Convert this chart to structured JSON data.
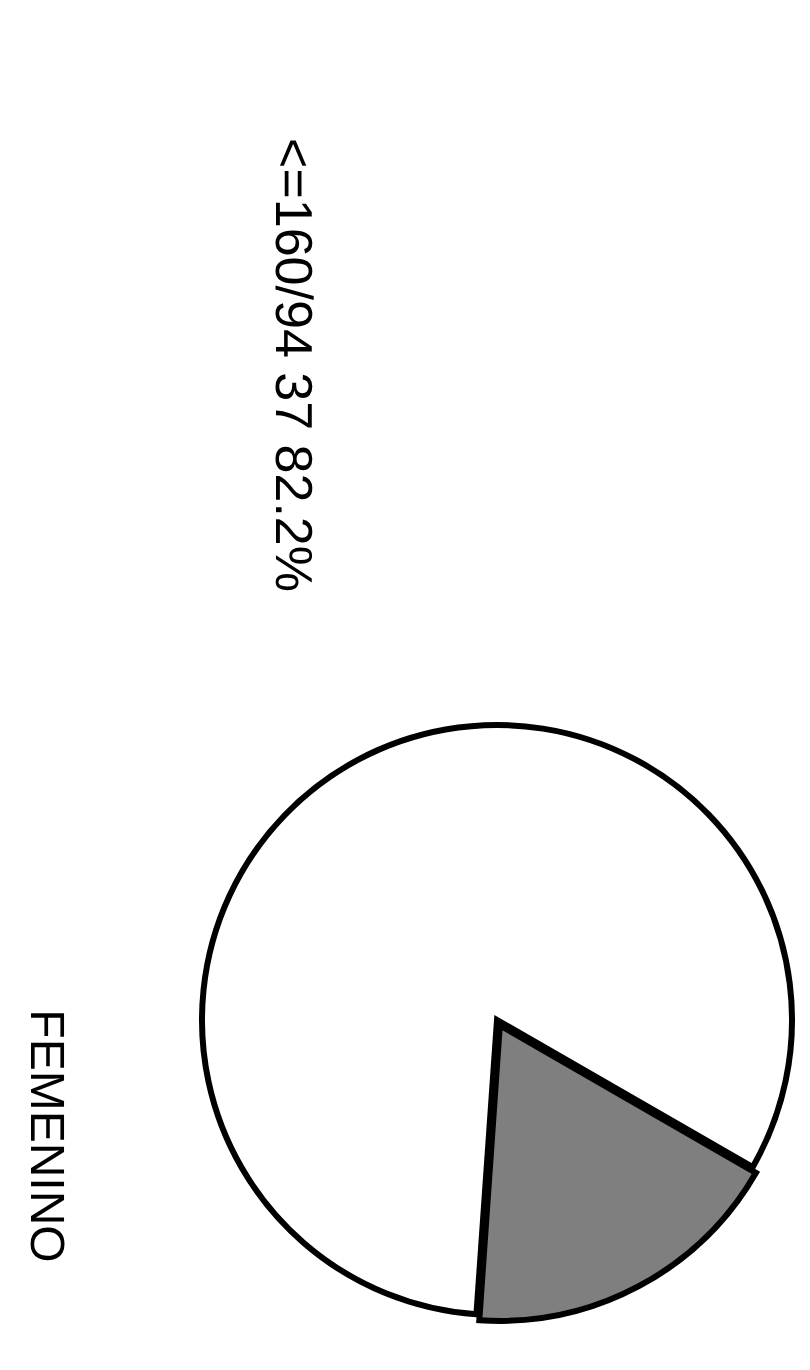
{
  "chart_data": {
    "type": "pie",
    "title": "FEMENINO",
    "categories": [
      "<=160/94",
      null
    ],
    "values": [
      82.2,
      17.8
    ],
    "value_labels": [
      "37 82.2%",
      null
    ],
    "colors": [
      "#ffffff",
      "#7f7f7f"
    ]
  }
}
